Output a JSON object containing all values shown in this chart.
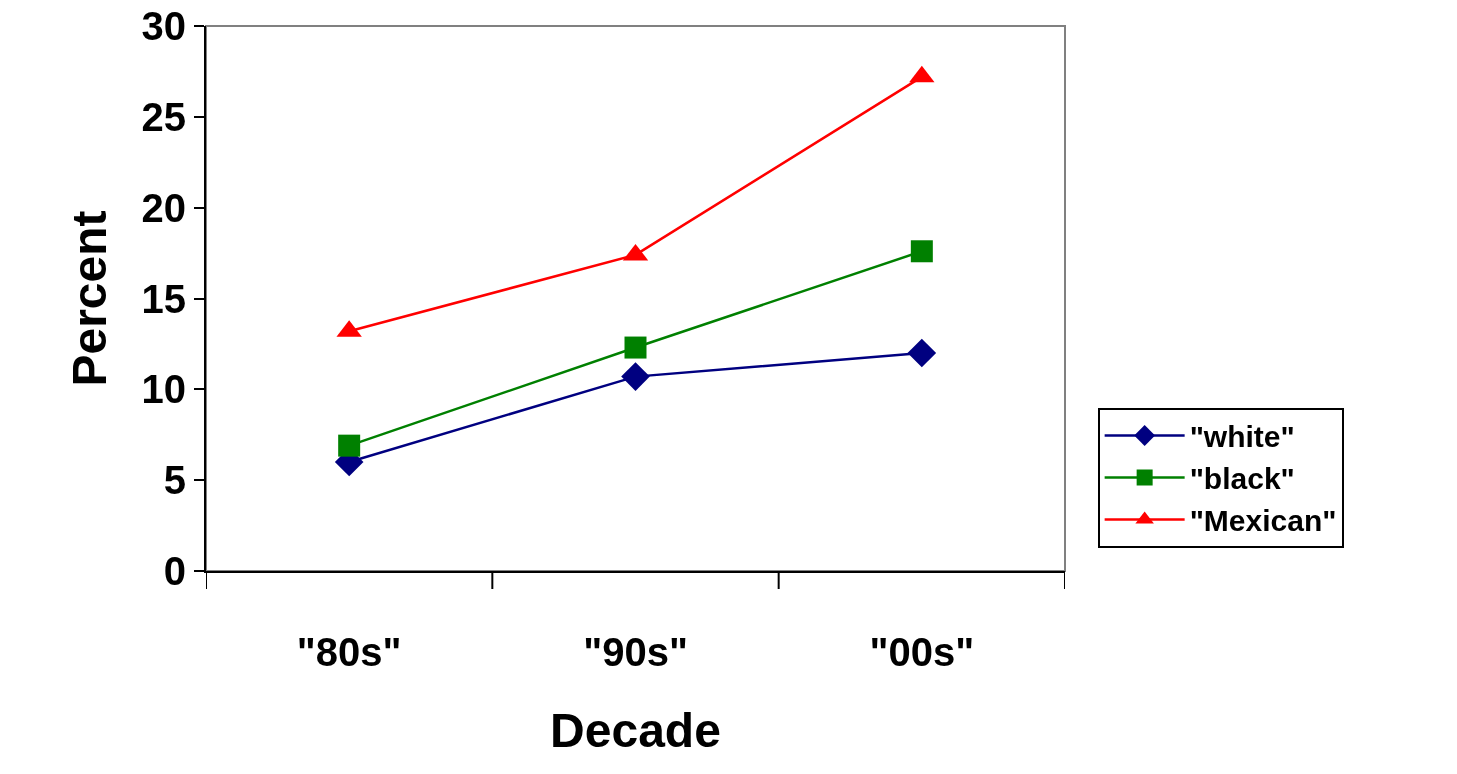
{
  "chart_data": {
    "type": "line",
    "xlabel": "Decade",
    "ylabel": "Percent",
    "categories": [
      "\"80s\"",
      "\"90s\"",
      "\"00s\""
    ],
    "series": [
      {
        "name": "\"white\"",
        "color": "#000080",
        "marker": "diamond",
        "values": [
          6.0,
          10.7,
          12.0
        ]
      },
      {
        "name": "\"black\"",
        "color": "#008000",
        "marker": "square",
        "values": [
          6.9,
          12.3,
          17.6
        ]
      },
      {
        "name": "\"Mexican\"",
        "color": "#ff0000",
        "marker": "triangle",
        "values": [
          13.2,
          17.4,
          27.2
        ]
      }
    ],
    "ylim": [
      0,
      30
    ],
    "yticks": [
      0,
      5,
      10,
      15,
      20,
      25,
      30
    ],
    "grid": false,
    "legend": "right",
    "line_style": "solid"
  }
}
